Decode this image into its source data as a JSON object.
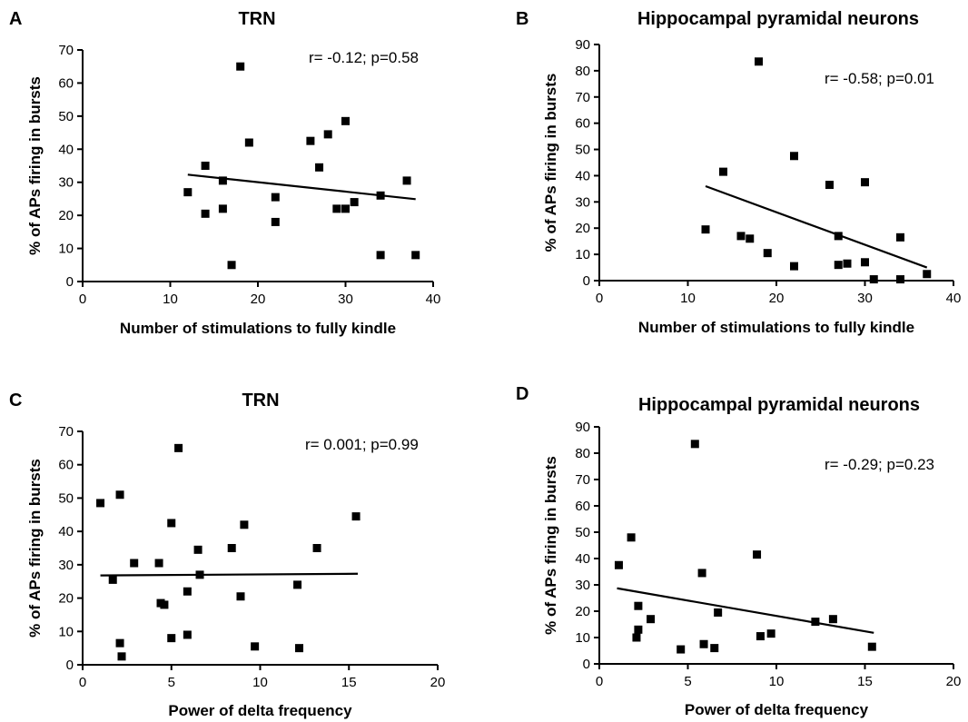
{
  "chart_data": [
    {
      "panel": "A",
      "type": "scatter",
      "title": "TRN",
      "xlabel": "Number of stimulations to fully kindle",
      "ylabel": "% of APs firing in bursts",
      "annotation": "r= -0.12; p=0.58",
      "xlim": [
        0,
        40
      ],
      "ylim": [
        0,
        70
      ],
      "xticks": [
        0,
        10,
        20,
        30,
        40
      ],
      "yticks": [
        0,
        10,
        20,
        30,
        40,
        50,
        60,
        70
      ],
      "grid": false,
      "points": [
        {
          "x": 12,
          "y": 27
        },
        {
          "x": 14,
          "y": 35
        },
        {
          "x": 14,
          "y": 20.5
        },
        {
          "x": 16,
          "y": 30.5
        },
        {
          "x": 16,
          "y": 22
        },
        {
          "x": 17,
          "y": 5
        },
        {
          "x": 18,
          "y": 65
        },
        {
          "x": 19,
          "y": 42
        },
        {
          "x": 22,
          "y": 25.5
        },
        {
          "x": 22,
          "y": 18
        },
        {
          "x": 26,
          "y": 42.5
        },
        {
          "x": 27,
          "y": 34.5
        },
        {
          "x": 28,
          "y": 44.5
        },
        {
          "x": 29,
          "y": 22
        },
        {
          "x": 30,
          "y": 48.5
        },
        {
          "x": 30,
          "y": 22
        },
        {
          "x": 31,
          "y": 24
        },
        {
          "x": 34,
          "y": 26
        },
        {
          "x": 34,
          "y": 8
        },
        {
          "x": 37,
          "y": 30.5
        },
        {
          "x": 38,
          "y": 8
        }
      ],
      "fit_line": {
        "x": [
          12,
          38
        ],
        "y": [
          32.3,
          24.9
        ]
      }
    },
    {
      "panel": "B",
      "type": "scatter",
      "title": "Hippocampal pyramidal neurons",
      "xlabel": "Number of stimulations to fully kindle",
      "ylabel": "% of APs firing in bursts",
      "annotation": "r= -0.58; p=0.01",
      "xlim": [
        0,
        40
      ],
      "ylim": [
        0,
        90
      ],
      "xticks": [
        0,
        10,
        20,
        30,
        40
      ],
      "yticks": [
        0,
        10,
        20,
        30,
        40,
        50,
        60,
        70,
        80,
        90
      ],
      "grid": false,
      "points": [
        {
          "x": 12,
          "y": 19.5
        },
        {
          "x": 14,
          "y": 41.5
        },
        {
          "x": 16,
          "y": 17
        },
        {
          "x": 17,
          "y": 16
        },
        {
          "x": 18,
          "y": 83.5
        },
        {
          "x": 19,
          "y": 10.5
        },
        {
          "x": 22,
          "y": 47.5
        },
        {
          "x": 22,
          "y": 5.5
        },
        {
          "x": 26,
          "y": 36.5
        },
        {
          "x": 27,
          "y": 17
        },
        {
          "x": 27,
          "y": 6
        },
        {
          "x": 28,
          "y": 6.5
        },
        {
          "x": 30,
          "y": 37.5
        },
        {
          "x": 30,
          "y": 7
        },
        {
          "x": 31,
          "y": 0.5
        },
        {
          "x": 34,
          "y": 16.5
        },
        {
          "x": 34,
          "y": 0.5
        },
        {
          "x": 37,
          "y": 2.5
        }
      ],
      "fit_line": {
        "x": [
          12,
          37
        ],
        "y": [
          36,
          5
        ]
      }
    },
    {
      "panel": "C",
      "type": "scatter",
      "title": "TRN",
      "xlabel": "Power of delta frequency",
      "ylabel": "% of APs firing in bursts",
      "annotation": "r= 0.001; p=0.99",
      "xlim": [
        0,
        20
      ],
      "ylim": [
        0,
        70
      ],
      "xticks": [
        0,
        5,
        10,
        15,
        20
      ],
      "yticks": [
        0,
        10,
        20,
        30,
        40,
        50,
        60,
        70
      ],
      "grid": false,
      "points": [
        {
          "x": 1.0,
          "y": 48.5
        },
        {
          "x": 1.7,
          "y": 25.5
        },
        {
          "x": 2.1,
          "y": 51
        },
        {
          "x": 2.1,
          "y": 6.5
        },
        {
          "x": 2.2,
          "y": 2.5
        },
        {
          "x": 2.9,
          "y": 30.5
        },
        {
          "x": 4.3,
          "y": 30.5
        },
        {
          "x": 4.4,
          "y": 18.5
        },
        {
          "x": 4.6,
          "y": 18
        },
        {
          "x": 5.0,
          "y": 42.5
        },
        {
          "x": 5.0,
          "y": 8
        },
        {
          "x": 5.4,
          "y": 65
        },
        {
          "x": 5.9,
          "y": 22
        },
        {
          "x": 5.9,
          "y": 9
        },
        {
          "x": 6.5,
          "y": 34.5
        },
        {
          "x": 6.6,
          "y": 27
        },
        {
          "x": 8.4,
          "y": 35
        },
        {
          "x": 8.9,
          "y": 20.5
        },
        {
          "x": 9.1,
          "y": 42
        },
        {
          "x": 9.7,
          "y": 5.5
        },
        {
          "x": 12.1,
          "y": 24
        },
        {
          "x": 12.2,
          "y": 5
        },
        {
          "x": 13.2,
          "y": 35
        },
        {
          "x": 15.4,
          "y": 44.5
        }
      ],
      "fit_line": {
        "x": [
          1,
          15.5
        ],
        "y": [
          26.8,
          27.3
        ]
      }
    },
    {
      "panel": "D",
      "type": "scatter",
      "title": "Hippocampal pyramidal neurons",
      "xlabel": "Power of delta frequency",
      "ylabel": "% of APs firing in bursts",
      "annotation": "r= -0.29; p=0.23",
      "xlim": [
        0,
        20
      ],
      "ylim": [
        0,
        90
      ],
      "xticks": [
        0,
        5,
        10,
        15,
        20
      ],
      "yticks": [
        0,
        10,
        20,
        30,
        40,
        50,
        60,
        70,
        80,
        90
      ],
      "grid": false,
      "points": [
        {
          "x": 1.1,
          "y": 37.5
        },
        {
          "x": 1.8,
          "y": 48
        },
        {
          "x": 2.1,
          "y": 10
        },
        {
          "x": 2.2,
          "y": 22
        },
        {
          "x": 2.2,
          "y": 13
        },
        {
          "x": 2.9,
          "y": 17
        },
        {
          "x": 4.6,
          "y": 5.5
        },
        {
          "x": 5.4,
          "y": 83.5
        },
        {
          "x": 5.8,
          "y": 34.5
        },
        {
          "x": 5.9,
          "y": 7.5
        },
        {
          "x": 6.5,
          "y": 6
        },
        {
          "x": 6.7,
          "y": 19.5
        },
        {
          "x": 8.9,
          "y": 41.5
        },
        {
          "x": 9.1,
          "y": 10.5
        },
        {
          "x": 9.7,
          "y": 11.5
        },
        {
          "x": 12.2,
          "y": 16
        },
        {
          "x": 13.2,
          "y": 17
        },
        {
          "x": 15.4,
          "y": 6.5
        }
      ],
      "fit_line": {
        "x": [
          1,
          15.5
        ],
        "y": [
          28.7,
          11.8
        ]
      }
    }
  ]
}
